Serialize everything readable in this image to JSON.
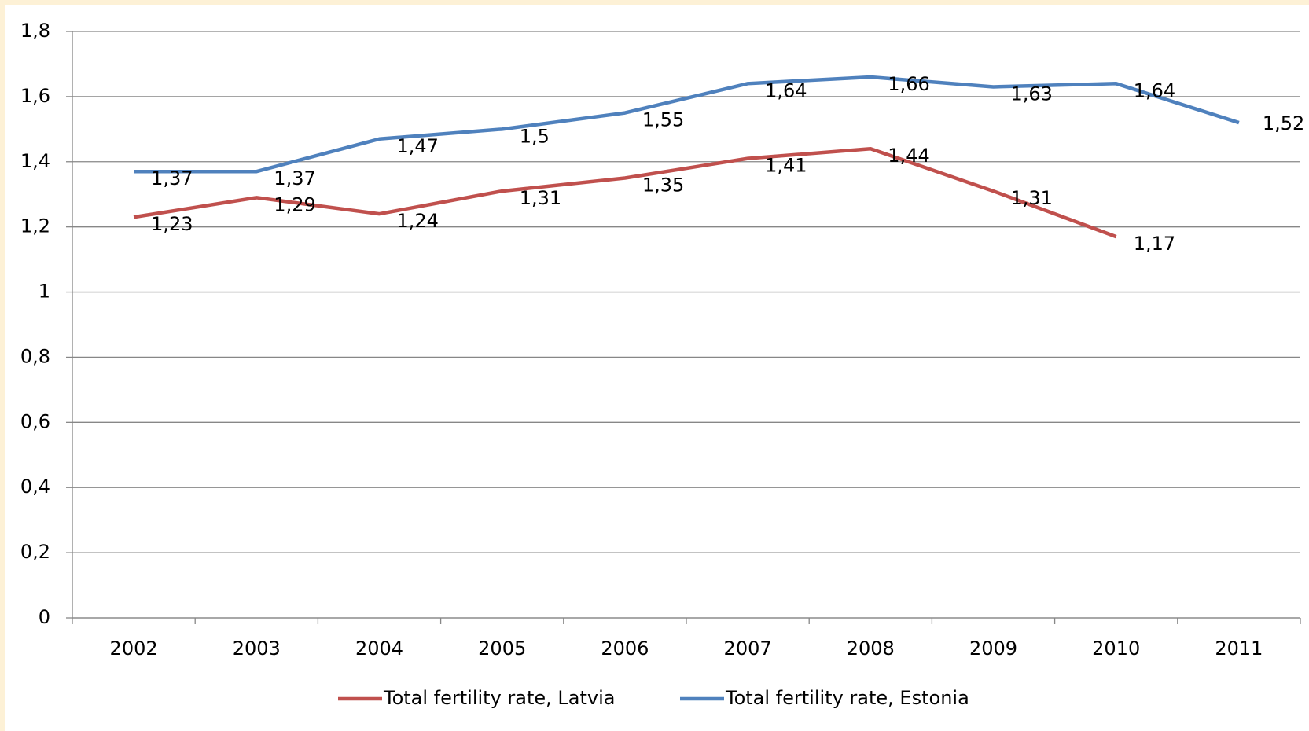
{
  "chart_data": {
    "type": "line",
    "categories": [
      "2002",
      "2003",
      "2004",
      "2005",
      "2006",
      "2007",
      "2008",
      "2009",
      "2010",
      "2011"
    ],
    "series": [
      {
        "name": "Total fertility rate, Latvia",
        "color": "#c0504d",
        "values": [
          1.23,
          1.29,
          1.24,
          1.31,
          1.35,
          1.41,
          1.44,
          1.31,
          1.17,
          null
        ],
        "value_labels": [
          "1,23",
          "1,29",
          "1,24",
          "1,31",
          "1,35",
          "1,41",
          "1,44",
          "1,31",
          "1,17",
          null
        ]
      },
      {
        "name": "Total fertility rate, Estonia",
        "color": "#4f81bd",
        "values": [
          1.37,
          1.37,
          1.47,
          1.5,
          1.55,
          1.64,
          1.66,
          1.63,
          1.64,
          1.52
        ],
        "value_labels": [
          "1,37",
          "1,37",
          "1,47",
          "1,5",
          "1,55",
          "1,64",
          "1,66",
          "1,63",
          "1,64",
          "1,52"
        ]
      }
    ],
    "ylim": [
      0,
      1.8
    ],
    "yticks": [
      0,
      {
        "value": 0.2,
        "label": "0,2"
      },
      {
        "value": 0.4,
        "label": "0,4"
      },
      {
        "value": 0.6,
        "label": "0,6"
      },
      {
        "value": 0.8,
        "label": "0,8"
      },
      1,
      {
        "value": 1.2,
        "label": "1,2"
      },
      {
        "value": 1.4,
        "label": "1,4"
      },
      {
        "value": 1.6,
        "label": "1,6"
      },
      {
        "value": 1.8,
        "label": "1,8"
      }
    ],
    "grid": true,
    "legend": "bottom"
  }
}
